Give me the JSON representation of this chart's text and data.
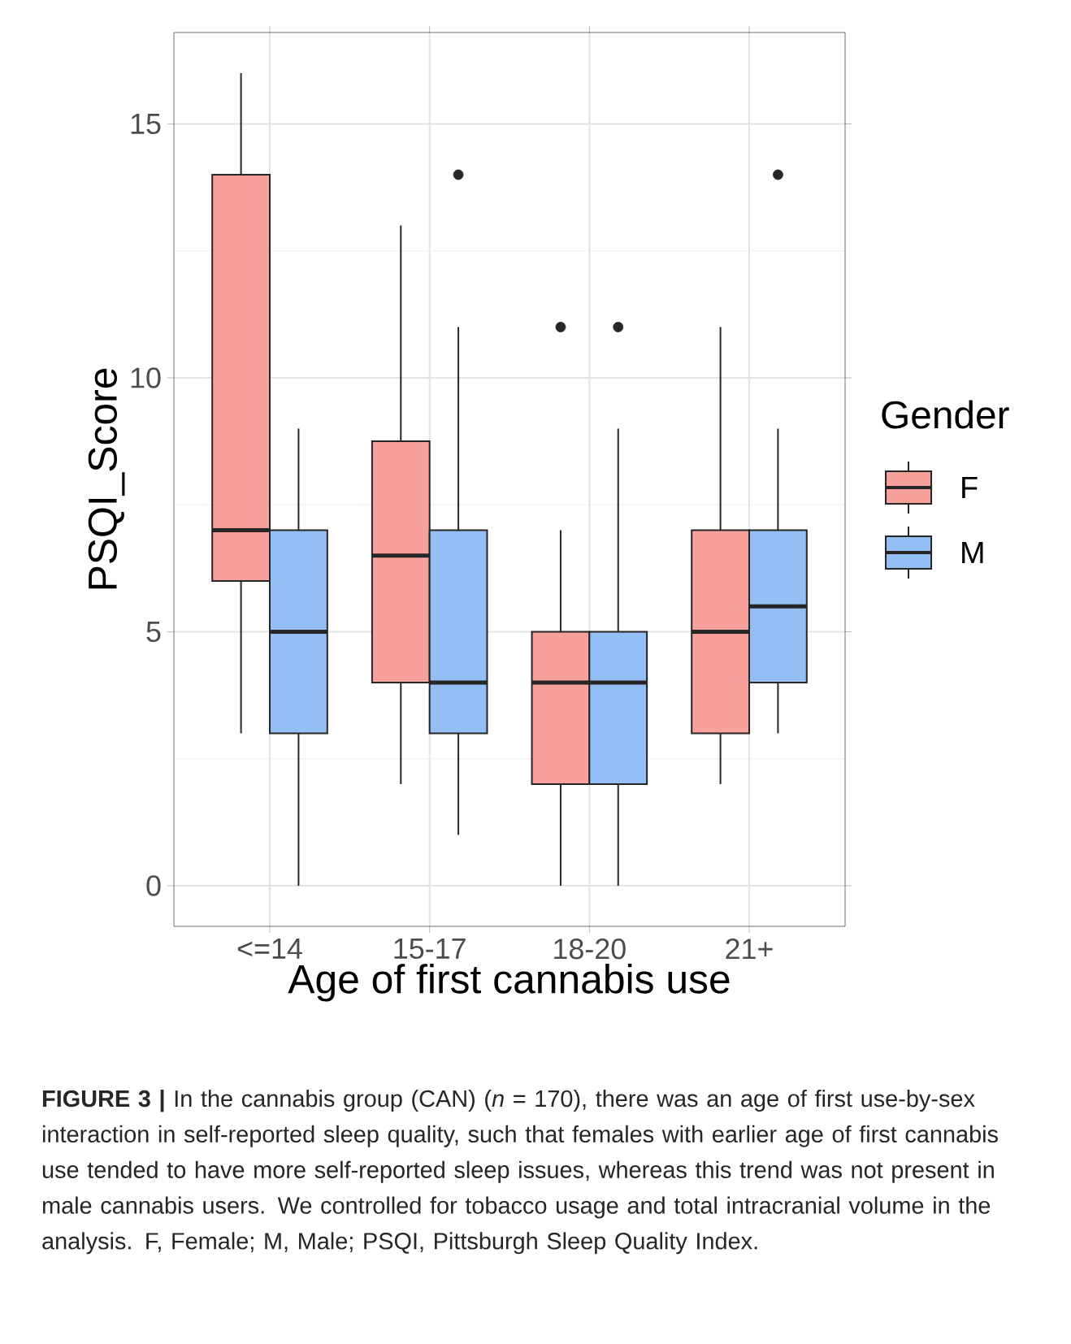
{
  "chart_data": {
    "type": "box",
    "xlabel": "Age of first cannabis use",
    "ylabel": "PSQI_Score",
    "legend_title": "Gender",
    "categories": [
      "<=14",
      "15-17",
      "18-20",
      "21+"
    ],
    "series": [
      {
        "name": "F",
        "color": "#f8a09c",
        "boxes": [
          {
            "low": 3,
            "q1": 6,
            "median": 7,
            "q3": 14,
            "high": 16
          },
          {
            "low": 2,
            "q1": 4,
            "median": 6.5,
            "q3": 8.75,
            "high": 13
          },
          {
            "low": 0,
            "q1": 2,
            "median": 4,
            "q3": 5,
            "high": 7,
            "outliers": [
              11
            ]
          },
          {
            "low": 2,
            "q1": 3,
            "median": 5,
            "q3": 7,
            "high": 11
          }
        ]
      },
      {
        "name": "M",
        "color": "#94bff4",
        "boxes": [
          {
            "low": 0,
            "q1": 3,
            "median": 5,
            "q3": 7,
            "high": 9
          },
          {
            "low": 1,
            "q1": 3,
            "median": 4,
            "q3": 7,
            "high": 11,
            "outliers": [
              14
            ]
          },
          {
            "low": 0,
            "q1": 2,
            "median": 4,
            "q3": 5,
            "high": 9,
            "outliers": [
              11
            ]
          },
          {
            "low": 3,
            "q1": 4,
            "median": 5.5,
            "q3": 7,
            "high": 9,
            "outliers": [
              14
            ]
          }
        ]
      }
    ],
    "ylim": [
      -0.8,
      16.8
    ],
    "yticks": [
      0,
      5,
      10,
      15
    ],
    "grid": true,
    "legend": "right",
    "annotations": [
      "**FIGURE 3 |** In the cannabis group (CAN) (*n* = 170), there was an age of first use-by-sex interaction in self-reported sleep quality, such that females with earlier age of first cannabis use tended to have more self-reported sleep issues, whereas this trend was not present in male cannabis users. We controlled for tobacco usage and total intracranial volume in the analysis. F, Female; M, Male; PSQI, Pittsburgh Sleep Quality Index."
    ]
  }
}
